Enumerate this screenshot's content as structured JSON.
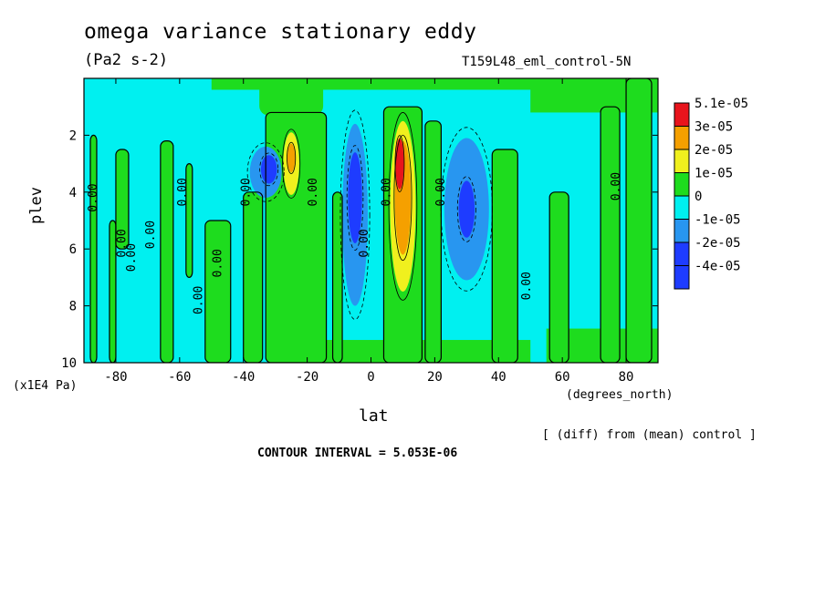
{
  "chart_data": {
    "type": "heatmap",
    "title": "omega variance stationary eddy",
    "units": "(Pa2 s-2)",
    "run_label": "T159L48_eml_control-5N",
    "xlabel": "lat",
    "x_units": "(degrees_north)",
    "ylabel": "plev",
    "y_units": "(x1E4 Pa)",
    "xlim": [
      -90,
      90
    ],
    "ylim": [
      10,
      0
    ],
    "x_ticks": [
      "-80",
      "-60",
      "-40",
      "-20",
      "0",
      "20",
      "40",
      "60",
      "80"
    ],
    "x_tick_values": [
      -80,
      -60,
      -40,
      -20,
      0,
      20,
      40,
      60,
      80
    ],
    "y_ticks": [
      "2",
      "4",
      "6",
      "8",
      "10"
    ],
    "y_tick_values": [
      2,
      4,
      6,
      8,
      10
    ],
    "diff_note": "[ (diff) from (mean) control ]",
    "contour_interval": "CONTOUR INTERVAL = 5.053E-06",
    "colorbar": [
      {
        "label": "5.1e-05",
        "color": "#e8141c"
      },
      {
        "label": "3e-05",
        "color": "#f5a000"
      },
      {
        "label": "2e-05",
        "color": "#f0f01e"
      },
      {
        "label": "1e-05",
        "color": "#1edc1e"
      },
      {
        "label": "0",
        "color": "#00f0f0"
      },
      {
        "label": "-1e-05",
        "color": "#2896f0"
      },
      {
        "label": "-2e-05",
        "color": "#1e3cff"
      },
      {
        "label": "-4e-05",
        "color": "#1e3cff"
      }
    ],
    "background_level": {
      "value": 0,
      "color": "#00f0f0"
    },
    "features": [
      {
        "kind": "positive",
        "lat": -25,
        "plev": 3.0,
        "peak": 2e-05,
        "color": "#f0f01e"
      },
      {
        "kind": "positive",
        "lat": 9,
        "plev": 4.0,
        "peak": 5.1e-05,
        "color": "#e8141c"
      },
      {
        "kind": "negative",
        "lat": -33,
        "plev": 3.3,
        "peak": -2e-05,
        "color": "#1e3cff"
      },
      {
        "kind": "negative",
        "lat": -5,
        "plev": 4.5,
        "peak": -2e-05,
        "color": "#1e3cff"
      },
      {
        "kind": "negative",
        "lat": 30,
        "plev": 4.5,
        "peak": -1.5e-05,
        "color": "#2896f0"
      }
    ],
    "contour_labels": [
      "0.00",
      "0.00",
      "0.00",
      "0.00",
      "0.00",
      "0.00",
      "0.00",
      "0.00",
      "0.00",
      "0.00",
      "0.00",
      "0.00",
      "0.00",
      "0.00"
    ]
  }
}
